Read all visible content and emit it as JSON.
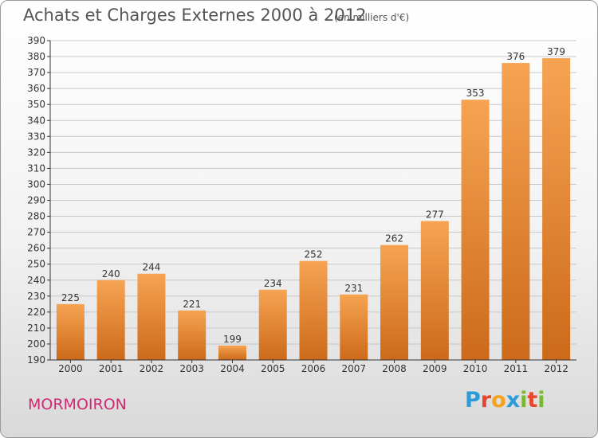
{
  "header": {
    "title": "Achats et Charges Externes 2000 à 2012",
    "subtitle": "(en milliers d'€)"
  },
  "footer": {
    "city": "MORMOIRON",
    "logo_text": "Proxiti",
    "logo_colors": [
      "#2d9bd8",
      "#e8452c",
      "#f4a11c",
      "#2d9bd8",
      "#7ab830",
      "#e8452c",
      "#7ab830"
    ]
  },
  "colors": {
    "bar_light": "#f6a452",
    "bar_dark": "#cc6a1a",
    "grid": "#c8c8c8",
    "city": "#d02a70"
  },
  "chart_data": {
    "type": "bar",
    "title": "Achats et Charges Externes 2000 à 2012",
    "subtitle": "(en milliers d'€)",
    "categories": [
      "2000",
      "2001",
      "2002",
      "2003",
      "2004",
      "2005",
      "2006",
      "2007",
      "2008",
      "2009",
      "2010",
      "2011",
      "2012"
    ],
    "values": [
      225,
      240,
      244,
      221,
      199,
      234,
      252,
      231,
      262,
      277,
      353,
      376,
      379
    ],
    "ylim": [
      190,
      390
    ],
    "ytick_step": 10,
    "grid": true,
    "data_labels": true
  }
}
